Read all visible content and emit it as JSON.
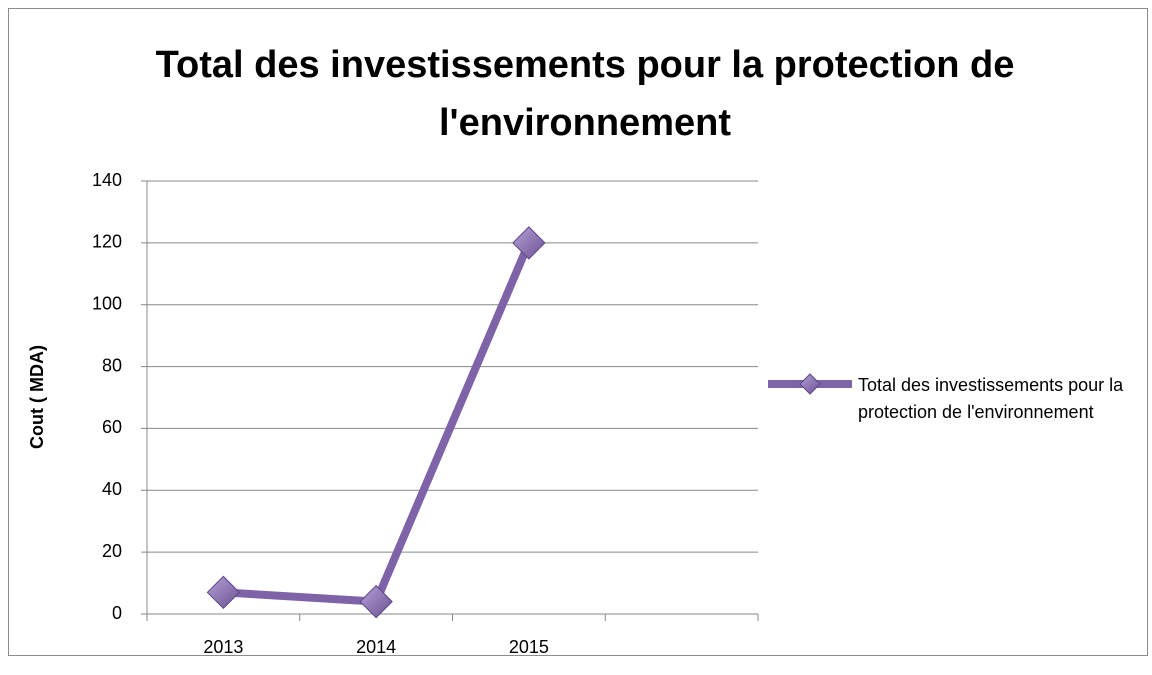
{
  "chart_data": {
    "type": "line",
    "title": "Total des investissements pour la protection de l'environnement",
    "y_label": "Cout ( MDA)",
    "categories": [
      "2013",
      "2014",
      "2015",
      null
    ],
    "series": [
      {
        "name": "Total des investissements pour la protection de l'environnement",
        "color": "#7f63a8",
        "values": [
          7,
          4,
          120,
          null
        ]
      }
    ],
    "ylim": [
      0,
      140
    ],
    "yticks": [
      0,
      20,
      40,
      60,
      80,
      100,
      120,
      140
    ],
    "grid": true,
    "legend": "right"
  }
}
